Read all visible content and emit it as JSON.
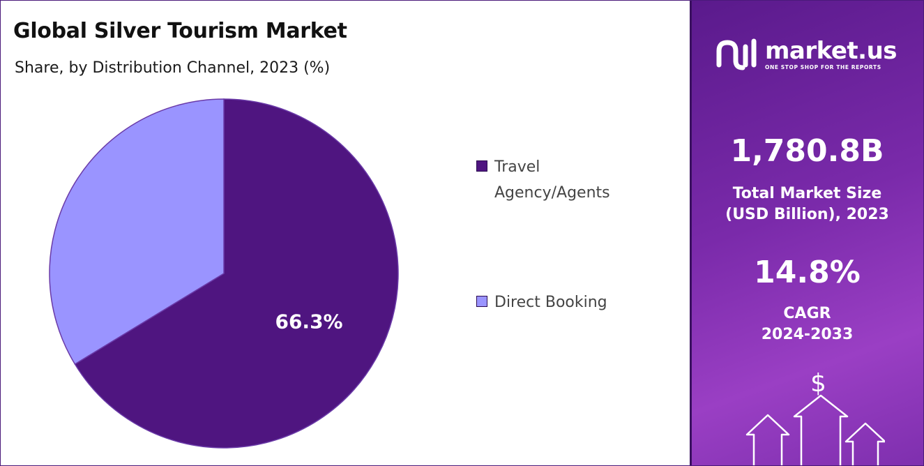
{
  "header": {
    "title": "Global Silver Tourism Market",
    "subtitle": "Share, by Distribution Channel, 2023 (%)"
  },
  "chart_data": {
    "type": "pie",
    "categories": [
      "Travel Agency/Agents",
      "Direct Booking"
    ],
    "values": [
      66.3,
      33.7
    ],
    "colors": [
      "#4f1580",
      "#9a94ff"
    ],
    "data_labels": [
      "66.3%",
      ""
    ],
    "legend_position": "right"
  },
  "legend": {
    "items": [
      {
        "label_lines": [
          "Travel",
          "Agency/Agents"
        ],
        "color": "#4f1580"
      },
      {
        "label_lines": [
          "Direct Booking"
        ],
        "color": "#9a94ff"
      }
    ]
  },
  "side_panel": {
    "brand": {
      "name": "market.us",
      "tagline": "ONE STOP SHOP FOR THE REPORTS"
    },
    "market_size": {
      "value": "1,780.8B",
      "label_line1": "Total Market Size",
      "label_line2": "(USD Billion), 2023"
    },
    "cagr": {
      "value": "14.8%",
      "label_line1": "CAGR",
      "label_line2": "2024-2033"
    },
    "icons": [
      "dollar-icon",
      "arrows-up-icon"
    ]
  }
}
